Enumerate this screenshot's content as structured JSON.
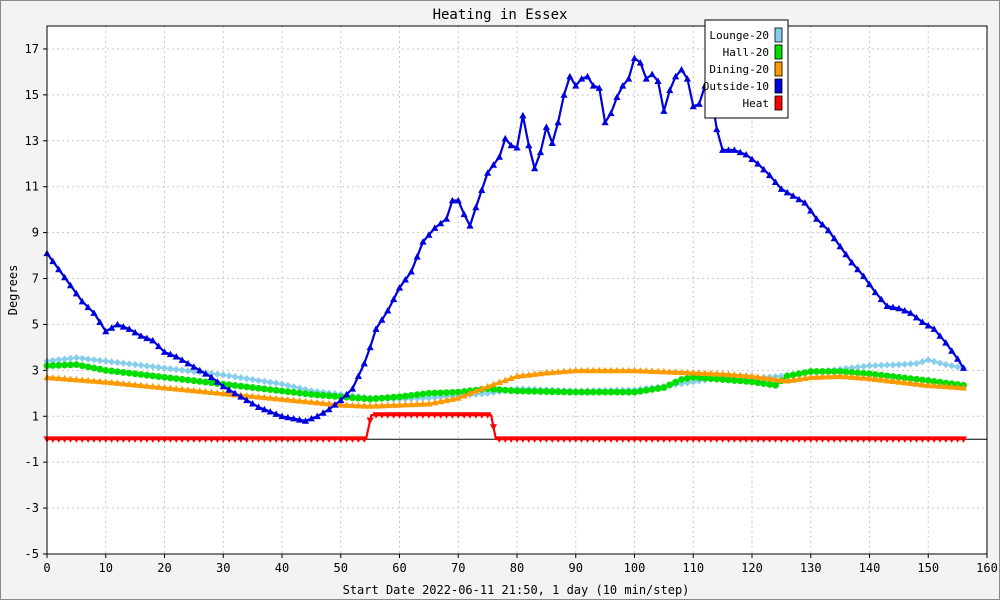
{
  "chart_data": {
    "type": "line",
    "title": "Heating in Essex",
    "xlabel": "Start Date 2022-06-11 21:50, 1 day (10 min/step)",
    "ylabel": "Degrees",
    "xlim": [
      0,
      160
    ],
    "ylim": [
      -5,
      18
    ],
    "x_ticks": [
      0,
      10,
      20,
      30,
      40,
      50,
      60,
      70,
      80,
      90,
      100,
      110,
      120,
      130,
      140,
      150,
      160
    ],
    "y_ticks": [
      -5,
      -3,
      -1,
      1,
      3,
      5,
      7,
      9,
      11,
      13,
      15,
      17
    ],
    "grid": true,
    "legend_position": "top-right",
    "zero_line": 0,
    "series": [
      {
        "name": "Lounge-20",
        "color": "#87ceeb",
        "marker": "diamond",
        "points": [
          [
            0,
            3.4
          ],
          [
            5,
            3.55
          ],
          [
            10,
            3.4
          ],
          [
            20,
            3.1
          ],
          [
            30,
            2.8
          ],
          [
            40,
            2.4
          ],
          [
            45,
            2.1
          ],
          [
            50,
            1.95
          ],
          [
            55,
            1.8
          ],
          [
            60,
            1.75
          ],
          [
            65,
            1.8
          ],
          [
            70,
            1.9
          ],
          [
            75,
            2.0
          ],
          [
            80,
            2.2
          ],
          [
            90,
            2.1
          ],
          [
            100,
            2.15
          ],
          [
            105,
            2.3
          ],
          [
            110,
            2.5
          ],
          [
            115,
            2.7
          ],
          [
            120,
            2.65
          ],
          [
            125,
            2.75
          ],
          [
            130,
            2.9
          ],
          [
            135,
            3.05
          ],
          [
            140,
            3.2
          ],
          [
            145,
            3.25
          ],
          [
            148,
            3.3
          ],
          [
            150,
            3.45
          ],
          [
            153,
            3.25
          ],
          [
            156,
            3.1
          ]
        ]
      },
      {
        "name": "Hall-20",
        "color": "#00dd00",
        "marker": "circle",
        "points": [
          [
            0,
            3.2
          ],
          [
            5,
            3.25
          ],
          [
            10,
            3.0
          ],
          [
            20,
            2.7
          ],
          [
            30,
            2.4
          ],
          [
            40,
            2.1
          ],
          [
            45,
            1.95
          ],
          [
            50,
            1.85
          ],
          [
            55,
            1.75
          ],
          [
            60,
            1.85
          ],
          [
            65,
            2.0
          ],
          [
            70,
            2.05
          ],
          [
            75,
            2.2
          ],
          [
            80,
            2.1
          ],
          [
            90,
            2.05
          ],
          [
            100,
            2.05
          ],
          [
            105,
            2.25
          ],
          [
            108,
            2.6
          ],
          [
            110,
            2.7
          ],
          [
            115,
            2.6
          ],
          [
            120,
            2.5
          ],
          [
            124,
            2.35
          ],
          [
            126,
            2.75
          ],
          [
            130,
            2.95
          ],
          [
            135,
            2.95
          ],
          [
            140,
            2.85
          ],
          [
            145,
            2.7
          ],
          [
            150,
            2.55
          ],
          [
            156,
            2.35
          ]
        ]
      },
      {
        "name": "Dining-20",
        "color": "#ff9900",
        "marker": "triangle-up",
        "points": [
          [
            0,
            2.7
          ],
          [
            10,
            2.5
          ],
          [
            20,
            2.25
          ],
          [
            30,
            2.0
          ],
          [
            40,
            1.75
          ],
          [
            50,
            1.5
          ],
          [
            55,
            1.45
          ],
          [
            60,
            1.5
          ],
          [
            65,
            1.55
          ],
          [
            70,
            1.8
          ],
          [
            75,
            2.3
          ],
          [
            80,
            2.75
          ],
          [
            85,
            2.9
          ],
          [
            90,
            3.0
          ],
          [
            100,
            3.0
          ],
          [
            105,
            2.95
          ],
          [
            110,
            2.9
          ],
          [
            115,
            2.85
          ],
          [
            120,
            2.75
          ],
          [
            124,
            2.6
          ],
          [
            126,
            2.55
          ],
          [
            130,
            2.7
          ],
          [
            135,
            2.75
          ],
          [
            140,
            2.65
          ],
          [
            145,
            2.5
          ],
          [
            150,
            2.35
          ],
          [
            156,
            2.25
          ]
        ]
      },
      {
        "name": "Outside-10",
        "color": "#0000dd",
        "marker": "triangle-up",
        "points": [
          [
            0,
            8.1
          ],
          [
            2,
            7.4
          ],
          [
            4,
            6.7
          ],
          [
            6,
            6.0
          ],
          [
            8,
            5.5
          ],
          [
            10,
            4.7
          ],
          [
            12,
            5.0
          ],
          [
            14,
            4.8
          ],
          [
            16,
            4.5
          ],
          [
            18,
            4.3
          ],
          [
            20,
            3.8
          ],
          [
            22,
            3.6
          ],
          [
            24,
            3.3
          ],
          [
            26,
            3.0
          ],
          [
            28,
            2.7
          ],
          [
            30,
            2.3
          ],
          [
            32,
            2.0
          ],
          [
            34,
            1.7
          ],
          [
            36,
            1.4
          ],
          [
            38,
            1.2
          ],
          [
            40,
            1.0
          ],
          [
            42,
            0.9
          ],
          [
            44,
            0.8
          ],
          [
            46,
            1.0
          ],
          [
            48,
            1.3
          ],
          [
            50,
            1.7
          ],
          [
            52,
            2.2
          ],
          [
            54,
            3.3
          ],
          [
            55,
            4.0
          ],
          [
            56,
            4.8
          ],
          [
            58,
            5.6
          ],
          [
            60,
            6.6
          ],
          [
            62,
            7.3
          ],
          [
            64,
            8.6
          ],
          [
            66,
            9.2
          ],
          [
            68,
            9.6
          ],
          [
            69,
            10.4
          ],
          [
            70,
            10.4
          ],
          [
            71,
            9.8
          ],
          [
            72,
            9.3
          ],
          [
            73,
            10.1
          ],
          [
            75,
            11.6
          ],
          [
            77,
            12.3
          ],
          [
            78,
            13.1
          ],
          [
            79,
            12.8
          ],
          [
            80,
            12.7
          ],
          [
            81,
            14.1
          ],
          [
            82,
            12.8
          ],
          [
            83,
            11.8
          ],
          [
            84,
            12.5
          ],
          [
            85,
            13.6
          ],
          [
            86,
            12.9
          ],
          [
            87,
            13.8
          ],
          [
            88,
            15.0
          ],
          [
            89,
            15.8
          ],
          [
            90,
            15.4
          ],
          [
            91,
            15.7
          ],
          [
            92,
            15.8
          ],
          [
            93,
            15.4
          ],
          [
            94,
            15.3
          ],
          [
            95,
            13.8
          ],
          [
            96,
            14.2
          ],
          [
            97,
            14.9
          ],
          [
            98,
            15.4
          ],
          [
            99,
            15.7
          ],
          [
            100,
            16.6
          ],
          [
            101,
            16.4
          ],
          [
            102,
            15.7
          ],
          [
            103,
            15.9
          ],
          [
            104,
            15.6
          ],
          [
            105,
            14.3
          ],
          [
            106,
            15.2
          ],
          [
            107,
            15.8
          ],
          [
            108,
            16.1
          ],
          [
            109,
            15.7
          ],
          [
            110,
            14.5
          ],
          [
            111,
            14.6
          ],
          [
            112,
            15.4
          ],
          [
            113,
            15.1
          ],
          [
            114,
            13.5
          ],
          [
            115,
            12.6
          ],
          [
            117,
            12.6
          ],
          [
            119,
            12.4
          ],
          [
            121,
            12.0
          ],
          [
            123,
            11.5
          ],
          [
            125,
            10.9
          ],
          [
            127,
            10.6
          ],
          [
            129,
            10.3
          ],
          [
            131,
            9.6
          ],
          [
            133,
            9.1
          ],
          [
            135,
            8.4
          ],
          [
            137,
            7.7
          ],
          [
            139,
            7.1
          ],
          [
            141,
            6.4
          ],
          [
            143,
            5.8
          ],
          [
            145,
            5.7
          ],
          [
            147,
            5.5
          ],
          [
            149,
            5.1
          ],
          [
            151,
            4.8
          ],
          [
            153,
            4.2
          ],
          [
            155,
            3.5
          ],
          [
            156,
            3.1
          ]
        ]
      },
      {
        "name": "Heat",
        "color": "#ff0000",
        "marker": "triangle-down",
        "points": [
          [
            0,
            0
          ],
          [
            54.3,
            0
          ],
          [
            55.2,
            1.05
          ],
          [
            75.6,
            1.05
          ],
          [
            76.4,
            0
          ],
          [
            156,
            0
          ]
        ]
      }
    ]
  }
}
